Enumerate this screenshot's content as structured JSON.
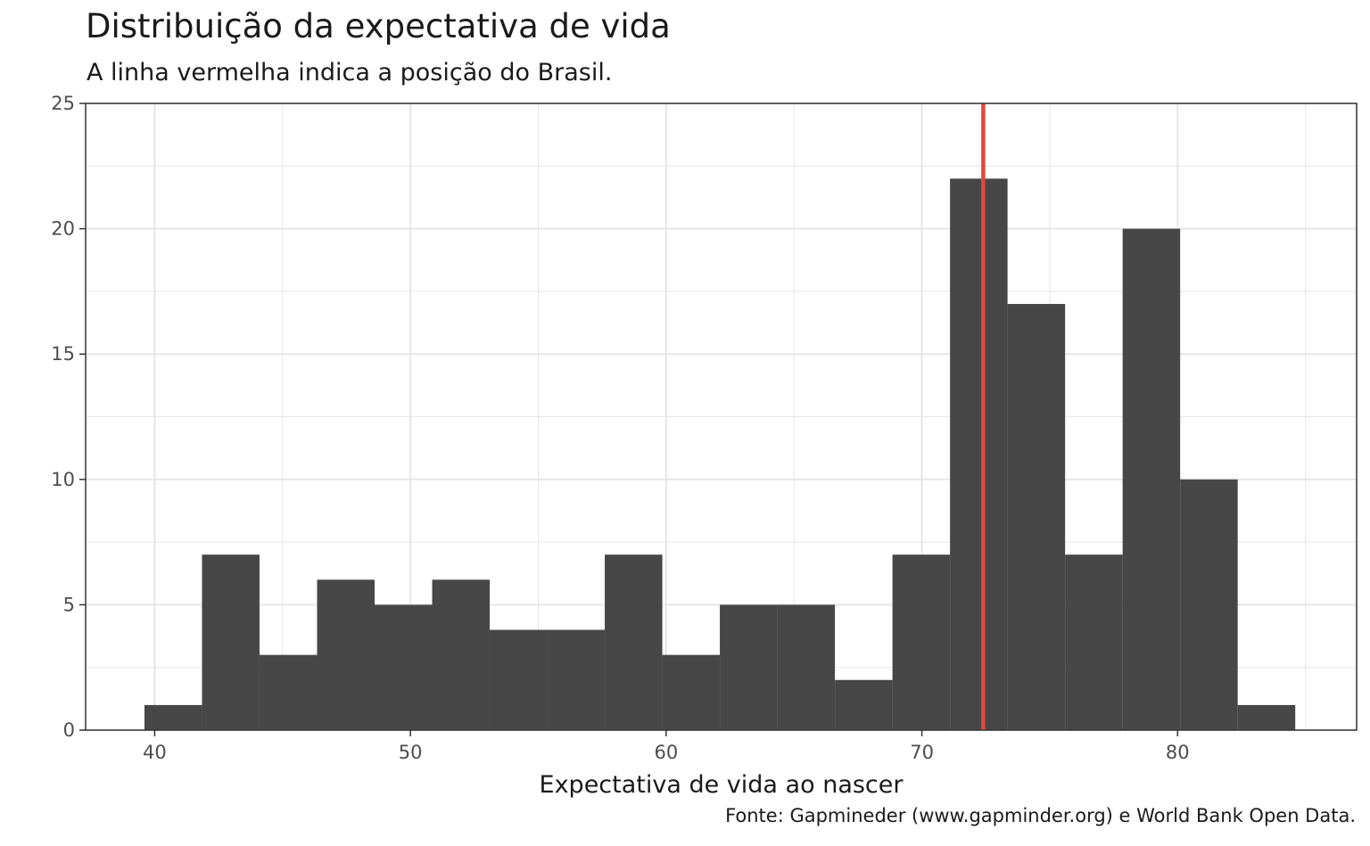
{
  "colors": {
    "bar": "#474747",
    "reference_line": "#e8473a",
    "grid": "#e6e6e6",
    "axis": "#333333"
  },
  "chart_data": {
    "type": "bar",
    "title": "Distribuição da expectativa de vida",
    "subtitle": "A linha vermelha indica a posição do Brasil.",
    "xlabel": "Expectativa de vida ao nascer",
    "ylabel": "",
    "caption": "Fonte: Gapmineder (www.gapminder.org) e World Bank Open Data.",
    "xlim": [
      37.3,
      87.0
    ],
    "ylim": [
      0,
      25
    ],
    "x_ticks": [
      "40",
      "50",
      "60",
      "70",
      "80"
    ],
    "y_ticks": [
      "0",
      "5",
      "10",
      "15",
      "20",
      "25"
    ],
    "grid": true,
    "bins": [
      {
        "x0": 39.6,
        "x1": 41.85,
        "count": 1
      },
      {
        "x0": 41.85,
        "x1": 44.1,
        "count": 7
      },
      {
        "x0": 44.1,
        "x1": 46.35,
        "count": 3
      },
      {
        "x0": 46.35,
        "x1": 48.6,
        "count": 6
      },
      {
        "x0": 48.6,
        "x1": 50.85,
        "count": 5
      },
      {
        "x0": 50.85,
        "x1": 53.1,
        "count": 6
      },
      {
        "x0": 53.1,
        "x1": 55.35,
        "count": 4
      },
      {
        "x0": 55.35,
        "x1": 57.6,
        "count": 4
      },
      {
        "x0": 57.6,
        "x1": 59.85,
        "count": 7
      },
      {
        "x0": 59.85,
        "x1": 62.1,
        "count": 3
      },
      {
        "x0": 62.1,
        "x1": 64.35,
        "count": 5
      },
      {
        "x0": 64.35,
        "x1": 66.6,
        "count": 5
      },
      {
        "x0": 66.6,
        "x1": 68.85,
        "count": 2
      },
      {
        "x0": 68.85,
        "x1": 71.1,
        "count": 7
      },
      {
        "x0": 71.1,
        "x1": 73.35,
        "count": 22
      },
      {
        "x0": 73.35,
        "x1": 75.6,
        "count": 17
      },
      {
        "x0": 75.6,
        "x1": 77.85,
        "count": 7
      },
      {
        "x0": 77.85,
        "x1": 80.1,
        "count": 20
      },
      {
        "x0": 80.1,
        "x1": 82.35,
        "count": 10
      },
      {
        "x0": 82.35,
        "x1": 84.6,
        "count": 1
      }
    ],
    "reference_line_x": 72.4
  }
}
